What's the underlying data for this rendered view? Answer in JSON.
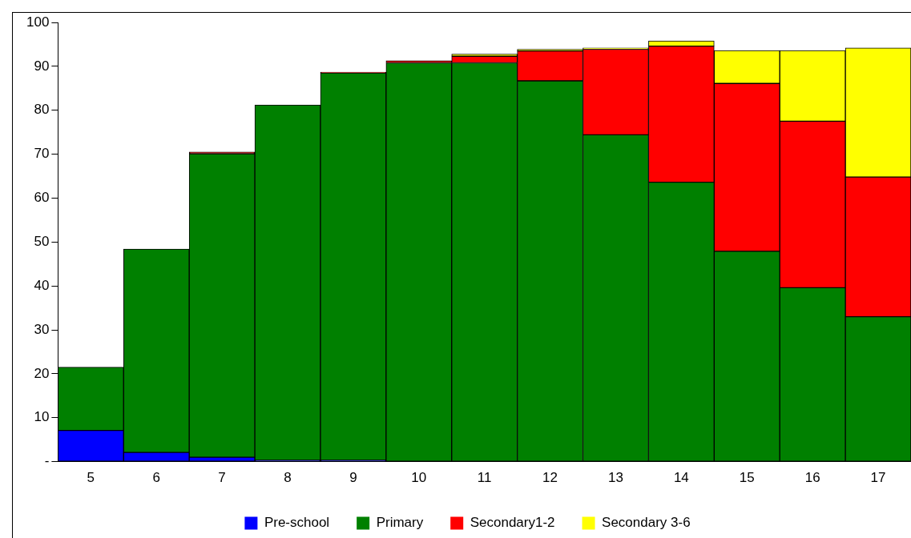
{
  "chart_data": {
    "type": "bar",
    "stacked": true,
    "categories": [
      "5",
      "6",
      "7",
      "8",
      "9",
      "10",
      "11",
      "12",
      "13",
      "14",
      "15",
      "16",
      "17"
    ],
    "series": [
      {
        "name": "Pre-school",
        "color": "#0000ff",
        "values": [
          7.1,
          2.1,
          1.0,
          0.3,
          0.3,
          0,
          0,
          0,
          0,
          0,
          0,
          0,
          0
        ]
      },
      {
        "name": "Primary",
        "color": "#008000",
        "values": [
          14.4,
          46.3,
          69.1,
          80.9,
          88.2,
          90.8,
          90.8,
          86.7,
          74.4,
          63.6,
          47.9,
          39.6,
          33.0
        ]
      },
      {
        "name": "Secondary1-2",
        "color": "#ff0000",
        "values": [
          0,
          0,
          0.4,
          0,
          0.2,
          0.5,
          1.5,
          6.8,
          19.5,
          31.0,
          38.2,
          37.9,
          31.8
        ]
      },
      {
        "name": "Secondary 3-6",
        "color": "#ffff00",
        "values": [
          0,
          0,
          0,
          0,
          0,
          0,
          0.5,
          0.4,
          0.3,
          1.2,
          7.5,
          16.1,
          29.4
        ]
      }
    ],
    "ylim": [
      0,
      100
    ],
    "yticks": [
      {
        "value": 0,
        "label": "-"
      },
      10,
      20,
      30,
      40,
      50,
      60,
      70,
      80,
      90,
      100
    ],
    "grid": false,
    "legend": "bottom"
  }
}
